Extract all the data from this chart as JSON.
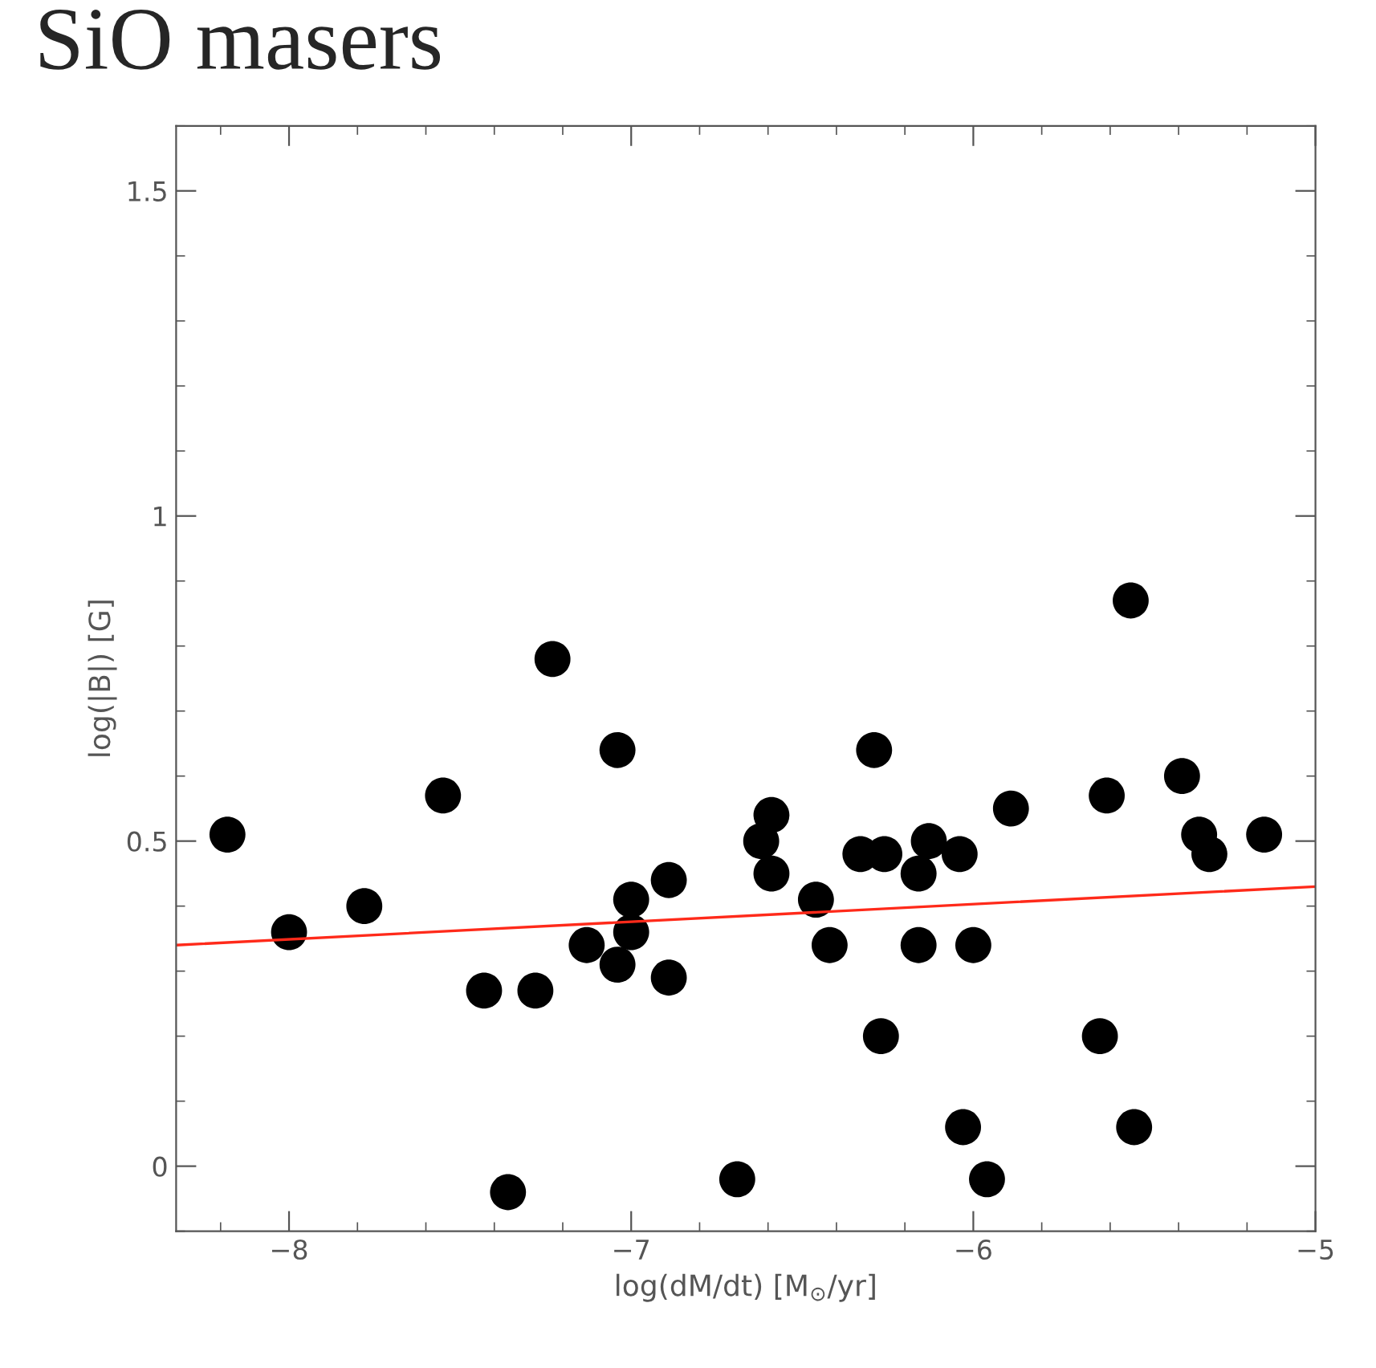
{
  "chart_data": {
    "type": "scatter",
    "title": "SiO masers",
    "xlabel": "log(dM/dt) [M$_{⊙}$/yr]",
    "ylabel": "log(|B|) [G]",
    "xlim": [
      -8.33,
      -5.0
    ],
    "ylim": [
      -0.1,
      1.6
    ],
    "xticks": [
      {
        "value": -8,
        "label": "−8"
      },
      {
        "value": -7,
        "label": "−7"
      },
      {
        "value": -6,
        "label": "−6"
      },
      {
        "value": -5,
        "label": "−5"
      }
    ],
    "yticks": [
      0,
      0.5,
      1,
      1.5
    ],
    "grid": false,
    "legend": false,
    "series": [
      {
        "marker": "circle",
        "color": "#000000",
        "x": [
          -8.18,
          -8.0,
          -7.78,
          -7.55,
          -7.43,
          -7.28,
          -7.36,
          -7.23,
          -7.13,
          -7.04,
          -7.04,
          -7.0,
          -7.0,
          -6.89,
          -6.89,
          -6.69,
          -6.62,
          -6.59,
          -6.59,
          -6.46,
          -6.42,
          -6.33,
          -6.29,
          -6.27,
          -6.26,
          -6.16,
          -6.16,
          -6.13,
          -6.04,
          -6.03,
          -6.0,
          -5.96,
          -5.89,
          -5.63,
          -5.61,
          -5.54,
          -5.53,
          -5.39,
          -5.34,
          -5.31,
          -5.15
        ],
        "values": [
          0.51,
          0.36,
          0.4,
          0.57,
          0.27,
          0.27,
          -0.04,
          0.78,
          0.34,
          0.64,
          0.31,
          0.36,
          0.41,
          0.44,
          0.29,
          -0.02,
          0.5,
          0.54,
          0.45,
          0.41,
          0.34,
          0.48,
          0.64,
          0.2,
          0.48,
          0.45,
          0.34,
          0.5,
          0.48,
          0.06,
          0.34,
          -0.02,
          0.55,
          0.2,
          0.57,
          0.87,
          0.06,
          0.6,
          0.51,
          0.48,
          0.51
        ]
      },
      {
        "type": "line",
        "color": "#ff2a1a",
        "line_style": "solid",
        "x": [
          -8.33,
          -5.0
        ],
        "values": [
          0.34,
          0.43
        ]
      }
    ]
  }
}
